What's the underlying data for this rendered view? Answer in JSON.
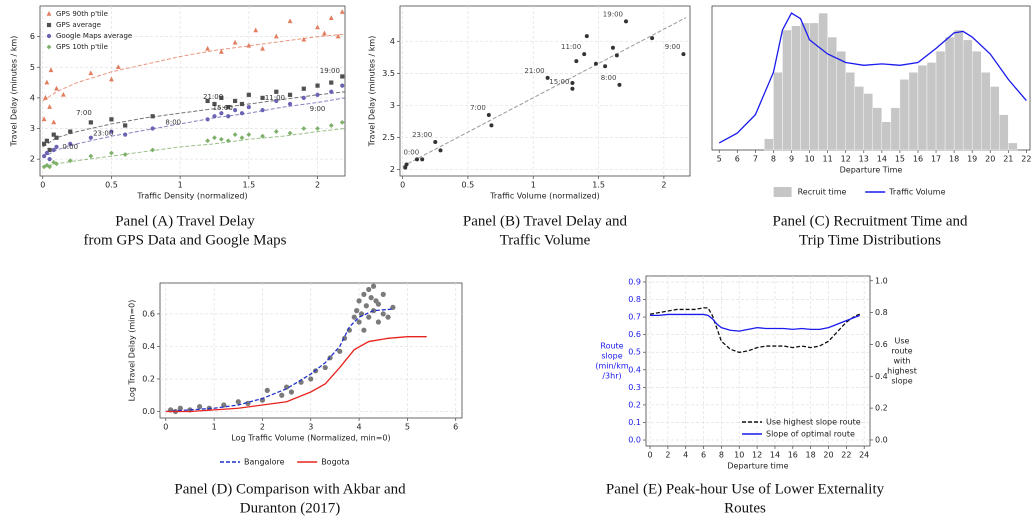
{
  "chart_data": [
    {
      "type": "scatter",
      "caption": [
        "Panel (A) Travel Delay",
        "from GPS Data and Google Maps"
      ],
      "xlabel": "Traffic Density (normalized)",
      "ylabel": "Travel Delay (minutes / km)",
      "xlim": [
        -0.02,
        2.2
      ],
      "ylim": [
        1.45,
        7
      ],
      "xticks": [
        0,
        0.5,
        1,
        1.5,
        2
      ],
      "yticks": [
        2,
        3,
        4,
        5,
        6
      ],
      "grid": true,
      "legend": "upper left",
      "trend_x": [
        0,
        0.1,
        0.25,
        0.5,
        0.75,
        1,
        1.25,
        1.5,
        1.75,
        2,
        2.2
      ],
      "series": [
        {
          "name": "GPS 90th p'tile",
          "color": "#e27d60",
          "marker": "triangle",
          "x": [
            0.01,
            0.02,
            0.03,
            0.05,
            0.06,
            0.08,
            0.1,
            0.15,
            0.35,
            0.5,
            0.55,
            1.2,
            1.3,
            1.4,
            1.5,
            1.55,
            1.6,
            1.7,
            1.8,
            1.9,
            2.0,
            2.05,
            2.1,
            2.15,
            2.18
          ],
          "values": [
            3.3,
            4.0,
            4.5,
            3.7,
            4.9,
            3.2,
            4.3,
            4.1,
            4.8,
            4.6,
            5.0,
            5.6,
            5.5,
            5.8,
            5.7,
            6.2,
            5.6,
            6.0,
            6.5,
            5.9,
            6.3,
            6.1,
            6.6,
            6.0,
            6.8
          ],
          "trend": [
            3.9,
            4.2,
            4.5,
            4.85,
            5.1,
            5.35,
            5.55,
            5.7,
            5.85,
            6.0,
            6.08
          ]
        },
        {
          "name": "GPS average",
          "color": "#505050",
          "marker": "square",
          "x": [
            0.01,
            0.03,
            0.05,
            0.08,
            0.1,
            0.2,
            0.35,
            0.5,
            0.6,
            0.8,
            1.2,
            1.25,
            1.3,
            1.35,
            1.4,
            1.45,
            1.5,
            1.6,
            1.7,
            1.8,
            1.9,
            2.0,
            2.1,
            2.18
          ],
          "values": [
            2.5,
            2.6,
            2.3,
            2.8,
            2.7,
            2.9,
            3.2,
            3.3,
            3.1,
            3.4,
            3.9,
            3.8,
            4.0,
            3.7,
            3.9,
            3.8,
            4.1,
            4.0,
            4.2,
            4.1,
            4.3,
            4.4,
            4.5,
            4.7
          ],
          "trend": [
            2.4,
            2.7,
            2.9,
            3.15,
            3.35,
            3.5,
            3.65,
            3.8,
            3.95,
            4.1,
            4.2
          ]
        },
        {
          "name": "Google Maps average",
          "color": "#6a63b3",
          "marker": "circle",
          "x": [
            0.01,
            0.03,
            0.05,
            0.08,
            0.1,
            0.2,
            0.35,
            0.5,
            0.6,
            0.8,
            1.2,
            1.25,
            1.3,
            1.35,
            1.4,
            1.45,
            1.5,
            1.6,
            1.7,
            1.8,
            1.9,
            2.0,
            2.1,
            2.18
          ],
          "values": [
            2.1,
            2.2,
            2.0,
            2.3,
            2.4,
            2.5,
            2.7,
            2.9,
            2.8,
            3.0,
            3.3,
            3.4,
            3.5,
            3.4,
            3.6,
            3.5,
            3.7,
            3.6,
            3.9,
            3.8,
            4.0,
            4.1,
            4.2,
            4.4
          ],
          "trend": [
            2.05,
            2.3,
            2.5,
            2.75,
            2.95,
            3.15,
            3.35,
            3.5,
            3.7,
            3.85,
            4.0
          ]
        },
        {
          "name": "GPS 10th p'tile",
          "color": "#7fb06a",
          "marker": "diamond",
          "x": [
            0.01,
            0.03,
            0.05,
            0.08,
            0.1,
            0.2,
            0.35,
            0.5,
            0.6,
            0.8,
            1.2,
            1.25,
            1.3,
            1.35,
            1.4,
            1.45,
            1.5,
            1.6,
            1.7,
            1.8,
            1.9,
            2.0,
            2.1,
            2.18
          ],
          "values": [
            1.75,
            1.8,
            1.75,
            1.9,
            1.85,
            1.95,
            2.1,
            2.2,
            2.15,
            2.3,
            2.6,
            2.7,
            2.65,
            2.6,
            2.8,
            2.7,
            2.8,
            2.75,
            2.9,
            2.85,
            3.0,
            3.0,
            3.1,
            3.2
          ],
          "trend": [
            1.75,
            1.85,
            1.95,
            2.1,
            2.25,
            2.4,
            2.5,
            2.65,
            2.75,
            2.9,
            3.0
          ]
        }
      ],
      "annotations": [
        {
          "text": "0:00",
          "x": 0.2,
          "y": 2.4
        },
        {
          "text": "7:00",
          "x": 0.3,
          "y": 3.5
        },
        {
          "text": "23:00",
          "x": 0.44,
          "y": 2.83
        },
        {
          "text": "8:00",
          "x": 0.95,
          "y": 3.2
        },
        {
          "text": "21:00",
          "x": 1.24,
          "y": 4.03
        },
        {
          "text": "15:00",
          "x": 1.31,
          "y": 3.67
        },
        {
          "text": "11:00",
          "x": 1.69,
          "y": 4.0
        },
        {
          "text": "19:00",
          "x": 2.09,
          "y": 4.87
        },
        {
          "text": "9:00",
          "x": 2.0,
          "y": 3.63
        }
      ]
    },
    {
      "type": "scatter",
      "caption": [
        "Panel (B) Travel Delay and",
        "Traffic Volume"
      ],
      "xlabel": "Traffic Volume (normalized)",
      "ylabel": "Travel Delay (minutes / km)",
      "xlim": [
        -0.02,
        2.2
      ],
      "ylim": [
        1.9,
        4.55
      ],
      "xticks": [
        0,
        0.5,
        1,
        1.5,
        2
      ],
      "yticks": [
        2,
        2.5,
        3,
        3.5,
        4
      ],
      "grid": true,
      "points": {
        "color": "#333333",
        "x": [
          0.02,
          0.03,
          0.11,
          0.15,
          0.25,
          0.29,
          0.66,
          0.68,
          1.11,
          1.3,
          1.3,
          1.33,
          1.39,
          1.41,
          1.48,
          1.55,
          1.61,
          1.64,
          1.66,
          1.71,
          1.91,
          2.15
        ],
        "values": [
          2.03,
          2.08,
          2.16,
          2.16,
          2.43,
          2.3,
          2.85,
          2.69,
          3.43,
          3.35,
          3.26,
          3.69,
          3.8,
          4.08,
          3.65,
          3.61,
          3.9,
          3.78,
          3.32,
          4.31,
          4.05,
          3.8
        ],
        "labels": [
          null,
          null,
          null,
          "0:00",
          "23:00",
          null,
          "7:00",
          null,
          "21:00",
          null,
          "15:00",
          null,
          "11:00",
          null,
          null,
          null,
          null,
          null,
          "8:00",
          "19:00",
          null,
          "9:00"
        ]
      },
      "fit": {
        "color": "#999999",
        "x": [
          0,
          2.17
        ],
        "values": [
          2.05,
          4.37
        ]
      }
    },
    {
      "type": "histogram",
      "caption": [
        "Panel (C) Recruitment Time and",
        "Trip Time Distributions"
      ],
      "xlabel": "Departure Time",
      "xlim": [
        4.6,
        22.2
      ],
      "ylim": [
        0,
        1.02
      ],
      "xticks": [
        5,
        6,
        7,
        8,
        9,
        10,
        11,
        12,
        13,
        14,
        15,
        16,
        17,
        18,
        19,
        20,
        21,
        22
      ],
      "legend": "below",
      "histogram": {
        "name": "Recruit time",
        "color": "#c6c6c6",
        "bins": [
          7.5,
          8,
          8.5,
          9,
          9.5,
          10,
          10.5,
          11,
          11.5,
          12,
          12.5,
          13,
          13.5,
          14,
          14.5,
          15,
          15.5,
          16,
          16.5,
          17,
          17.5,
          18,
          18.5,
          19,
          19.5,
          20,
          20.5,
          21,
          21.5
        ],
        "counts": [
          0.08,
          0.55,
          0.85,
          0.88,
          0.9,
          0.9,
          0.97,
          0.8,
          0.7,
          0.55,
          0.45,
          0.4,
          0.3,
          0.2,
          0.3,
          0.5,
          0.55,
          0.6,
          0.62,
          0.7,
          0.8,
          0.85,
          0.78,
          0.7,
          0.55,
          0.45,
          0.25,
          0.05
        ]
      },
      "series": [
        {
          "name": "Traffic Volume",
          "color": "#1a1aee",
          "x": [
            5,
            6,
            7,
            8,
            8.5,
            9,
            9.5,
            10,
            11,
            12,
            13,
            14,
            15,
            16,
            17,
            18,
            18.5,
            19,
            20,
            21,
            22
          ],
          "values": [
            0.05,
            0.12,
            0.25,
            0.55,
            0.85,
            0.97,
            0.93,
            0.78,
            0.68,
            0.62,
            0.6,
            0.61,
            0.6,
            0.62,
            0.72,
            0.83,
            0.84,
            0.8,
            0.68,
            0.5,
            0.35
          ]
        }
      ]
    },
    {
      "type": "line",
      "caption": [
        "Panel (D) Comparison with Akbar and",
        "Duranton (2017)"
      ],
      "xlabel": "Log Traffic Volume (Normalized, min=0)",
      "ylabel": "Log Travel Delay (min=0)",
      "xlim": [
        -0.12,
        6.13
      ],
      "ylim": [
        -0.04,
        0.79
      ],
      "xticks": [
        0,
        1,
        2,
        3,
        4,
        5,
        6
      ],
      "yticks": [
        {
          "value": 0,
          "label": "0.0"
        },
        0.2,
        0.4,
        0.6
      ],
      "grid": true,
      "legend": "below",
      "points": {
        "color": "#7a7a7a",
        "x": [
          0.1,
          0.2,
          0.3,
          0.5,
          0.7,
          0.9,
          1.2,
          1.5,
          1.7,
          2.0,
          2.1,
          2.4,
          2.5,
          2.6,
          2.8,
          3.0,
          3.1,
          3.3,
          3.4,
          3.6,
          3.7,
          3.8,
          3.9,
          3.95,
          4.0,
          4.0,
          4.05,
          4.1,
          4.1,
          4.15,
          4.2,
          4.2,
          4.25,
          4.3,
          4.3,
          4.35,
          4.4,
          4.4,
          4.5,
          4.5,
          4.6,
          4.7
        ],
        "values": [
          0.01,
          0.0,
          0.02,
          0.01,
          0.03,
          0.02,
          0.04,
          0.06,
          0.05,
          0.07,
          0.13,
          0.1,
          0.15,
          0.12,
          0.18,
          0.2,
          0.25,
          0.27,
          0.33,
          0.37,
          0.45,
          0.5,
          0.58,
          0.62,
          0.55,
          0.68,
          0.6,
          0.72,
          0.5,
          0.65,
          0.58,
          0.75,
          0.7,
          0.62,
          0.77,
          0.68,
          0.55,
          0.66,
          0.6,
          0.72,
          0.58,
          0.64
        ]
      },
      "series": [
        {
          "name": "Bangalore",
          "color": "#1f2fcc",
          "dash": "dashed",
          "x": [
            0,
            0.5,
            1,
            1.5,
            2,
            2.5,
            3,
            3.3,
            3.6,
            3.8,
            4.0,
            4.3,
            4.7
          ],
          "values": [
            0.0,
            0.01,
            0.02,
            0.04,
            0.08,
            0.14,
            0.23,
            0.3,
            0.4,
            0.52,
            0.58,
            0.62,
            0.63
          ]
        },
        {
          "name": "Bogota",
          "color": "#e8231d",
          "dash": "solid",
          "x": [
            0,
            0.5,
            1,
            1.5,
            2,
            2.5,
            3,
            3.3,
            3.6,
            3.9,
            4.2,
            4.6,
            5.0,
            5.4
          ],
          "values": [
            0,
            0,
            0.01,
            0.02,
            0.04,
            0.06,
            0.12,
            0.17,
            0.27,
            0.38,
            0.43,
            0.45,
            0.46,
            0.46
          ]
        }
      ]
    },
    {
      "type": "line",
      "caption": [
        "Panel (E) Peak-hour Use of Lower Externality",
        "Routes"
      ],
      "xlabel": "Departure time",
      "ylabel": [
        "Route",
        "slope",
        "(min/km",
        "/3hr)"
      ],
      "ylabel_color": "#1a1aee",
      "y2label": [
        "Use",
        "route",
        "with",
        "highest",
        "slope"
      ],
      "xlim": [
        -0.45,
        24.65
      ],
      "ylim": [
        -0.034,
        0.934
      ],
      "y2lim": [
        -0.038,
        1.03
      ],
      "xticks": [
        0,
        2,
        4,
        6,
        8,
        10,
        12,
        14,
        16,
        18,
        20,
        22,
        24
      ],
      "yticks": [
        {
          "value": 0,
          "label": "0.0"
        },
        0.1,
        0.2,
        0.3,
        0.4,
        0.5,
        0.6,
        0.7,
        0.8,
        0.9
      ],
      "ytick_color": "#1a1aee",
      "y2ticks": [
        {
          "value": 0,
          "label": "0.0"
        },
        0.2,
        0.4,
        0.6,
        0.8,
        {
          "value": 1,
          "label": "1.0"
        }
      ],
      "grid": true,
      "legend": "lower right",
      "series": [
        {
          "name": "Use highest slope route",
          "color": "#111111",
          "dash": "dashed",
          "axis": "y2",
          "x": [
            0,
            1,
            2,
            3,
            4,
            5,
            6,
            6.5,
            7,
            7.5,
            8,
            9,
            10,
            11,
            12,
            13,
            14,
            15,
            16,
            17,
            18,
            19,
            20,
            21,
            22,
            23,
            23.5
          ],
          "values": [
            0.79,
            0.8,
            0.81,
            0.82,
            0.82,
            0.82,
            0.83,
            0.83,
            0.78,
            0.7,
            0.62,
            0.57,
            0.55,
            0.56,
            0.58,
            0.59,
            0.59,
            0.59,
            0.58,
            0.59,
            0.58,
            0.59,
            0.62,
            0.68,
            0.74,
            0.78,
            0.79
          ]
        },
        {
          "name": "Slope of optimal route",
          "color": "#1a1aee",
          "dash": "solid",
          "x": [
            0,
            1,
            2,
            3,
            4,
            5,
            6,
            6.5,
            7,
            7.5,
            8,
            9,
            10,
            11,
            12,
            13,
            14,
            15,
            16,
            17,
            18,
            19,
            20,
            21,
            22,
            23,
            23.5
          ],
          "values": [
            0.71,
            0.71,
            0.715,
            0.715,
            0.715,
            0.715,
            0.715,
            0.71,
            0.69,
            0.66,
            0.64,
            0.625,
            0.62,
            0.63,
            0.64,
            0.635,
            0.635,
            0.635,
            0.63,
            0.635,
            0.63,
            0.63,
            0.64,
            0.66,
            0.68,
            0.7,
            0.71
          ]
        }
      ]
    }
  ]
}
